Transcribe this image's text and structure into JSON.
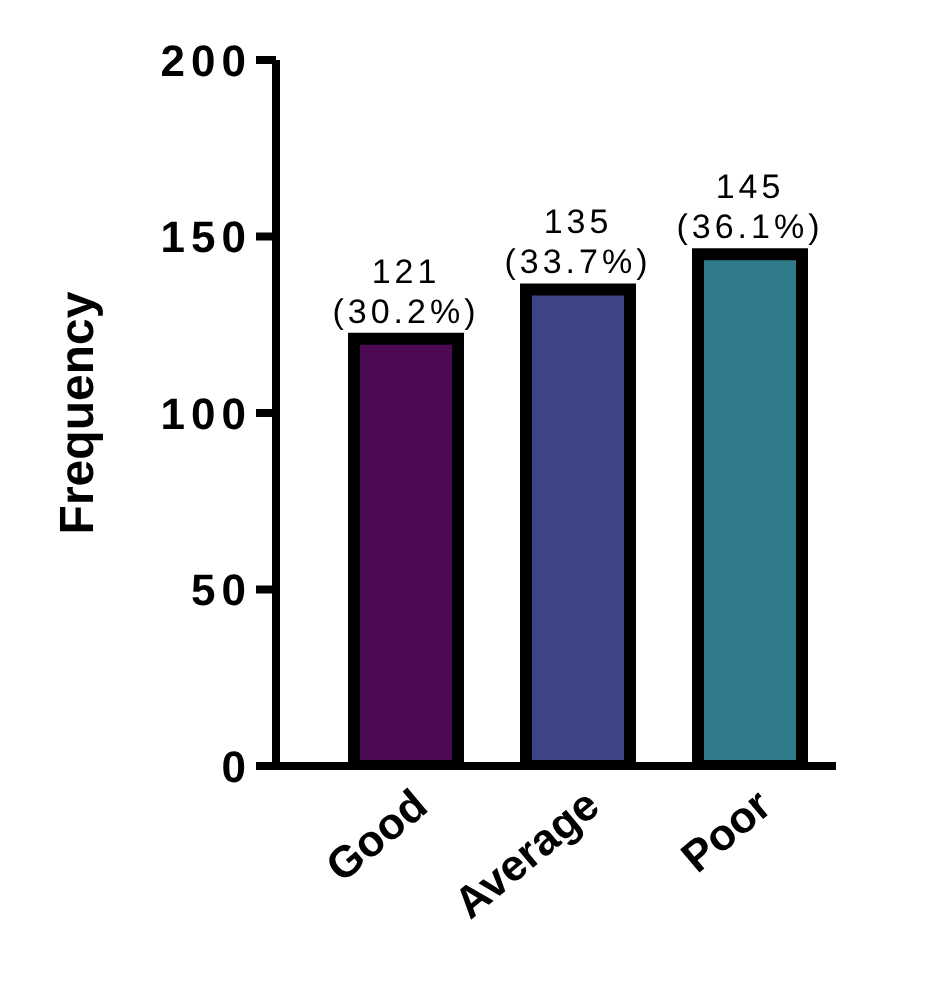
{
  "chart_data": {
    "type": "bar",
    "ylabel": "Frequency",
    "categories": [
      "Good",
      "Average",
      "Poor"
    ],
    "values": [
      121,
      135,
      145
    ],
    "colors": [
      "#4b0a52",
      "#3f4584",
      "#2f7b8c"
    ],
    "value_labels": [
      "121 (30.2%)",
      "135 (33.7%)",
      "145 (36.1%)"
    ],
    "ylim": [
      0,
      200
    ],
    "yticks": [
      0,
      50,
      100,
      150,
      200
    ]
  }
}
